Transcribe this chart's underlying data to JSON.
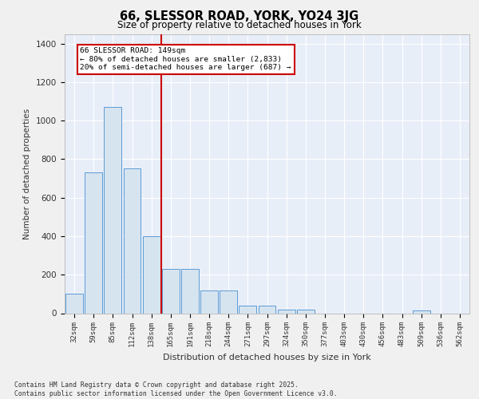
{
  "title": "66, SLESSOR ROAD, YORK, YO24 3JG",
  "subtitle": "Size of property relative to detached houses in York",
  "xlabel": "Distribution of detached houses by size in York",
  "ylabel": "Number of detached properties",
  "categories": [
    "32sqm",
    "59sqm",
    "85sqm",
    "112sqm",
    "138sqm",
    "165sqm",
    "191sqm",
    "218sqm",
    "244sqm",
    "271sqm",
    "297sqm",
    "324sqm",
    "350sqm",
    "377sqm",
    "403sqm",
    "430sqm",
    "456sqm",
    "483sqm",
    "509sqm",
    "536sqm",
    "562sqm"
  ],
  "values": [
    100,
    730,
    1070,
    750,
    400,
    230,
    230,
    120,
    120,
    40,
    40,
    20,
    20,
    0,
    0,
    0,
    0,
    0,
    15,
    0,
    0
  ],
  "bar_color": "#d6e4f0",
  "bar_edge_color": "#5b9bd5",
  "bar_edge_width": 0.7,
  "vline_pos": 4.5,
  "vline_color": "#cc0000",
  "annotation_line1": "66 SLESSOR ROAD: 149sqm",
  "annotation_line2": "← 80% of detached houses are smaller (2,833)",
  "annotation_line3": "20% of semi-detached houses are larger (687) →",
  "annotation_box_color": "#cc0000",
  "ylim": [
    0,
    1450
  ],
  "yticks": [
    0,
    200,
    400,
    600,
    800,
    1000,
    1200,
    1400
  ],
  "bg_color": "#e8eef8",
  "grid_color": "#ffffff",
  "fig_bg_color": "#f0f0f0",
  "footer_line1": "Contains HM Land Registry data © Crown copyright and database right 2025.",
  "footer_line2": "Contains public sector information licensed under the Open Government Licence v3.0."
}
